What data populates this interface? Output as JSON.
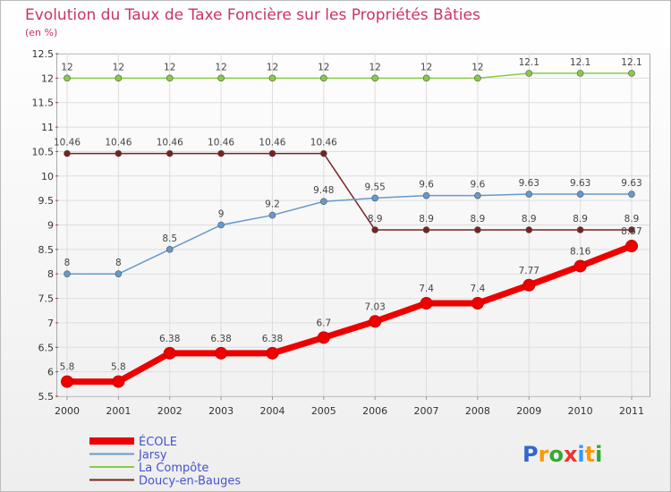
{
  "chart_data": {
    "type": "line",
    "title": "Evolution du Taux de Taxe Foncière sur les Propriétés Bâties",
    "subtitle": "(en %)",
    "xlabel": "",
    "ylabel": "",
    "ylim": [
      5.5,
      12.5
    ],
    "yticks": [
      "5.5",
      "6",
      "6.5",
      "7",
      "7.5",
      "8",
      "8.5",
      "9",
      "9.5",
      "10",
      "10.5",
      "11",
      "11.5",
      "12",
      "12.5"
    ],
    "categories": [
      "2000",
      "2001",
      "2002",
      "2003",
      "2004",
      "2005",
      "2006",
      "2007",
      "2008",
      "2009",
      "2010",
      "2011"
    ],
    "grid": true,
    "legend_position": "bottom-left",
    "series": [
      {
        "name": "Doucy-en-Bauges",
        "color": "#772222",
        "values": [
          10.46,
          10.46,
          10.46,
          10.46,
          10.46,
          10.46,
          8.9,
          8.9,
          8.9,
          8.9,
          8.9,
          8.9
        ],
        "labels": [
          "10.46",
          "10.46",
          "10.46",
          "10.46",
          "10.46",
          "10.46",
          "8.9",
          "8.9",
          "8.9",
          "8.9",
          "8.9",
          "8.9"
        ]
      },
      {
        "name": "Jarsy",
        "color": "#6699cc",
        "values": [
          8,
          8,
          8.5,
          9,
          9.2,
          9.48,
          9.55,
          9.6,
          9.6,
          9.63,
          9.63,
          9.63
        ],
        "labels": [
          "8",
          "8",
          "8.5",
          "9",
          "9.2",
          "9.48",
          "9.55",
          "9.6",
          "9.6",
          "9.63",
          "9.63",
          "9.63"
        ]
      },
      {
        "name": "La Compôte",
        "color": "#88cc44",
        "values": [
          12,
          12,
          12,
          12,
          12,
          12,
          12,
          12,
          12,
          12.1,
          12.1,
          12.1
        ],
        "labels": [
          "12",
          "12",
          "12",
          "12",
          "12",
          "12",
          "12",
          "12",
          "12",
          "12.1",
          "12.1",
          "12.1"
        ]
      },
      {
        "name": "ÉCOLE",
        "color": "#ee0000",
        "values": [
          5.8,
          5.8,
          6.38,
          6.38,
          6.38,
          6.7,
          7.03,
          7.4,
          7.4,
          7.77,
          8.16,
          8.57
        ],
        "labels": [
          "5.8",
          "5.8",
          "6.38",
          "6.38",
          "6.38",
          "6.7",
          "7.03",
          "7.4",
          "7.4",
          "7.77",
          "8.16",
          "8.57"
        ]
      }
    ],
    "legend": [
      "ÉCOLE",
      "Jarsy",
      "La Compôte",
      "Doucy-en-Bauges"
    ]
  },
  "logo": {
    "text": "Proxiti"
  }
}
